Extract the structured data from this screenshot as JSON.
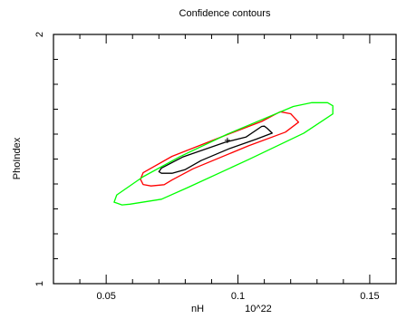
{
  "chart_data": {
    "type": "contour",
    "title": "Confidence contours",
    "xlabel": "nH",
    "xunit": "10^22",
    "ylabel": "PhoIndex",
    "xlim": [
      0.03,
      0.16
    ],
    "ylim": [
      1,
      2
    ],
    "xticks": [
      0.05,
      0.1,
      0.15
    ],
    "xtick_labels": [
      "0.05",
      "0.1",
      "0.15"
    ],
    "yticks": [
      1,
      2
    ],
    "ytick_labels": [
      "1",
      "2"
    ],
    "best_fit": {
      "x": 0.096,
      "y": 1.575
    },
    "contours": [
      {
        "color": "#000000",
        "points": [
          [
            0.071,
            1.443
          ],
          [
            0.07,
            1.449
          ],
          [
            0.071,
            1.464
          ],
          [
            0.079,
            1.508
          ],
          [
            0.095,
            1.567
          ],
          [
            0.103,
            1.588
          ],
          [
            0.109,
            1.631
          ],
          [
            0.11,
            1.632
          ],
          [
            0.111,
            1.624
          ],
          [
            0.113,
            1.604
          ],
          [
            0.107,
            1.58
          ],
          [
            0.097,
            1.543
          ],
          [
            0.086,
            1.494
          ],
          [
            0.08,
            1.458
          ],
          [
            0.075,
            1.443
          ]
        ]
      },
      {
        "color": "#ff0000",
        "points": [
          [
            0.067,
            1.392
          ],
          [
            0.064,
            1.398
          ],
          [
            0.063,
            1.419
          ],
          [
            0.064,
            1.445
          ],
          [
            0.075,
            1.511
          ],
          [
            0.095,
            1.594
          ],
          [
            0.109,
            1.651
          ],
          [
            0.116,
            1.69
          ],
          [
            0.12,
            1.682
          ],
          [
            0.123,
            1.648
          ],
          [
            0.118,
            1.608
          ],
          [
            0.104,
            1.553
          ],
          [
            0.083,
            1.461
          ],
          [
            0.075,
            1.416
          ],
          [
            0.072,
            1.397
          ]
        ]
      },
      {
        "color": "#00ff00",
        "points": [
          [
            0.059,
            1.319
          ],
          [
            0.056,
            1.316
          ],
          [
            0.053,
            1.327
          ],
          [
            0.054,
            1.356
          ],
          [
            0.064,
            1.429
          ],
          [
            0.078,
            1.51
          ],
          [
            0.096,
            1.6
          ],
          [
            0.121,
            1.711
          ],
          [
            0.128,
            1.726
          ],
          [
            0.134,
            1.726
          ],
          [
            0.136,
            1.714
          ],
          [
            0.136,
            1.681
          ],
          [
            0.125,
            1.604
          ],
          [
            0.104,
            1.498
          ],
          [
            0.081,
            1.386
          ],
          [
            0.071,
            1.339
          ]
        ]
      }
    ]
  }
}
